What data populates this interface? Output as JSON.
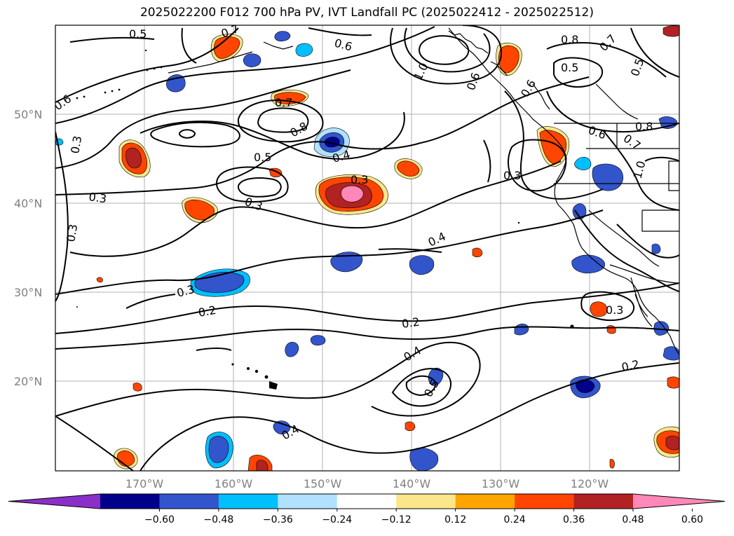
{
  "map": {
    "title": "2025022200 F012 700 hPa PV, IVT Landfall PC (2025022412 - 2025022512)",
    "latitude_labels": [
      "50°N",
      "40°N",
      "30°N",
      "20°N"
    ],
    "longitude_labels": [
      "170°W",
      "160°W",
      "150°W",
      "140°W",
      "130°W",
      "120°W"
    ],
    "contour_labels": [
      "0.5",
      "0.7",
      "0.6",
      "1.0",
      "0.8",
      "0.7",
      "0.5",
      "0.6",
      "0.3",
      "0.6",
      "0.7",
      "0.8",
      "0.5",
      "0.4",
      "0.3",
      "0.3",
      "0.6",
      "0.7",
      "0.3",
      "0.3",
      "0.3",
      "0.4",
      "0.3",
      "0.2",
      "0.3",
      "0.2",
      "0.4",
      "0.5",
      "0.4",
      "0.2",
      "0.5",
      "0.8",
      "1.0",
      "0.6"
    ],
    "colorbar": {
      "ticks": [
        "−0.60",
        "−0.48",
        "−0.36",
        "−0.24",
        "−0.12",
        "0.12",
        "0.24",
        "0.36",
        "0.48",
        "0.60"
      ],
      "colors": [
        "#8b2fc9",
        "#00008b",
        "#3255cc",
        "#00bfff",
        "#b0e2ff",
        "#ffffff",
        "#fbe68a",
        "#ffa500",
        "#ff4500",
        "#b22222",
        "#ff88b8"
      ]
    }
  }
}
